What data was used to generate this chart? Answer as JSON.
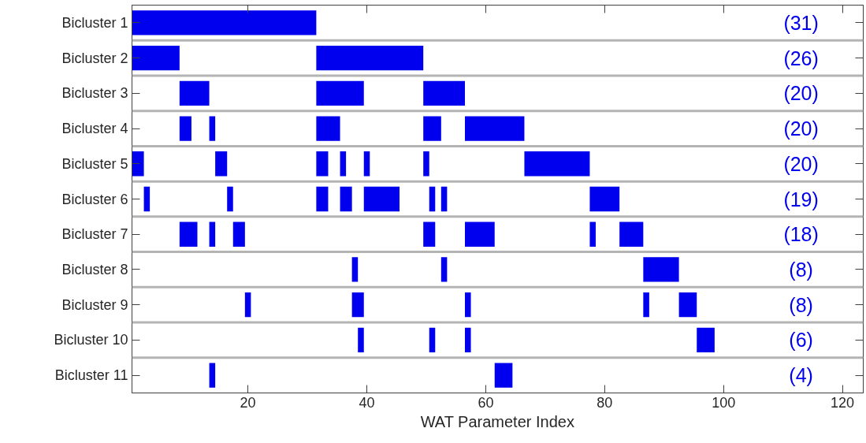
{
  "chart_data": {
    "type": "bar",
    "orientation": "horizontal",
    "xlabel": "WAT Parameter Index",
    "categories": [
      "Bicluster 1",
      "Bicluster 2",
      "Bicluster 3",
      "Bicluster 4",
      "Bicluster 5",
      "Bicluster 6",
      "Bicluster 7",
      "Bicluster 8",
      "Bicluster 9",
      "Bicluster 10",
      "Bicluster 11"
    ],
    "series": [
      {
        "color": "#0000ee",
        "base": [
          0.5,
          0.5,
          8.5,
          8.5,
          0.5,
          2.5,
          8.5,
          37.5,
          19.5,
          38.5,
          13.5
        ],
        "values": [
          31,
          8,
          5,
          2,
          2,
          1,
          3,
          1,
          1,
          1,
          1
        ]
      },
      {
        "color": "#0000ee",
        "base": [
          null,
          31.5,
          31.5,
          13.5,
          14.5,
          16.5,
          13.5,
          52.5,
          37.5,
          50.5,
          61.5
        ],
        "values": [
          null,
          18,
          8,
          1,
          2,
          1,
          1,
          1,
          2,
          1,
          3
        ]
      },
      {
        "color": "#0000ee",
        "base": [
          null,
          null,
          49.5,
          31.5,
          31.5,
          31.5,
          17.5,
          86.5,
          56.5,
          56.5,
          null
        ],
        "values": [
          null,
          null,
          7,
          4,
          2,
          2,
          2,
          6,
          1,
          1,
          null
        ]
      },
      {
        "color": "#0000ee",
        "base": [
          null,
          null,
          null,
          49.5,
          35.5,
          35.5,
          49.5,
          null,
          86.5,
          95.5,
          null
        ],
        "values": [
          null,
          null,
          null,
          3,
          1,
          2,
          2,
          null,
          1,
          3,
          null
        ]
      },
      {
        "color": "#0000ee",
        "base": [
          null,
          null,
          null,
          56.5,
          39.5,
          39.5,
          56.5,
          null,
          92.5,
          null,
          null
        ],
        "values": [
          null,
          null,
          null,
          10,
          1,
          6,
          5,
          null,
          3,
          null,
          null
        ]
      },
      {
        "color": "#0000ee",
        "base": [
          null,
          null,
          null,
          null,
          49.5,
          50.5,
          77.5,
          null,
          null,
          null,
          null
        ],
        "values": [
          null,
          null,
          null,
          null,
          1,
          1,
          1,
          null,
          null,
          null,
          null
        ]
      },
      {
        "color": "#0000ee",
        "base": [
          null,
          null,
          null,
          null,
          66.5,
          52.5,
          82.5,
          null,
          null,
          null,
          null
        ],
        "values": [
          null,
          null,
          null,
          null,
          11,
          1,
          4,
          null,
          null,
          null,
          null
        ]
      },
      {
        "color": "#0000ee",
        "base": [
          null,
          null,
          null,
          null,
          null,
          77.5,
          null,
          null,
          null,
          null,
          null
        ],
        "values": [
          null,
          null,
          null,
          null,
          null,
          5,
          null,
          null,
          null,
          null,
          null
        ]
      }
    ],
    "xlim": [
      0.5,
      123.5
    ],
    "xticks": [
      20,
      40,
      60,
      80,
      100,
      120
    ],
    "grid": "y",
    "annotations": [
      "(31)",
      "(26)",
      "(20)",
      "(20)",
      "(20)",
      "(19)",
      "(18)",
      "(8)",
      "(8)",
      "(6)",
      "(4)"
    ]
  }
}
